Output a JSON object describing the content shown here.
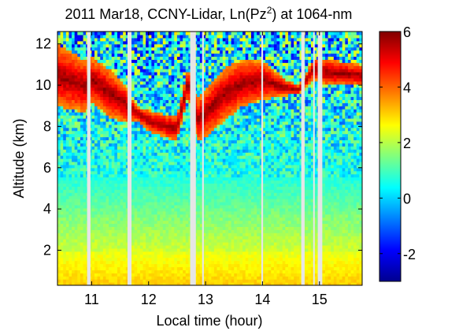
{
  "chart_data": {
    "type": "heatmap",
    "title_prefix": "2011 Mar18, CCNY-Lidar, Ln(Pz",
    "title_sup": "2",
    "title_suffix": ") at 1064-nm",
    "xlabel": "Local time (hour)",
    "ylabel": "Altitude (km)",
    "xlim": [
      10.4,
      15.75
    ],
    "ylim": [
      0.3,
      12.6
    ],
    "xticks": [
      11,
      12,
      13,
      14,
      15
    ],
    "yticks": [
      2,
      4,
      6,
      8,
      10,
      12
    ],
    "colorbar": {
      "range": [
        -3,
        6
      ],
      "ticks": [
        -2,
        0,
        2,
        4,
        6
      ],
      "colormap": "jet"
    },
    "data_gaps_hours": [
      [
        10.92,
        10.98
      ],
      [
        11.63,
        11.7
      ],
      [
        12.73,
        12.83
      ],
      [
        12.94,
        12.97
      ],
      [
        13.98,
        14.01
      ],
      [
        14.68,
        14.74
      ],
      [
        14.89,
        14.91
      ],
      [
        14.97,
        15.05
      ]
    ],
    "cloud_layer": {
      "times": [
        10.4,
        10.9,
        11.0,
        11.3,
        11.6,
        11.8,
        12.0,
        12.3,
        12.5,
        12.7,
        12.85,
        13.0,
        13.3,
        13.6,
        14.0,
        14.4,
        14.65,
        14.9,
        15.1,
        15.75
      ],
      "base_km": [
        9.0,
        8.7,
        9.2,
        8.5,
        8.2,
        8.3,
        7.8,
        7.5,
        7.3,
        9.5,
        7.3,
        7.5,
        8.2,
        8.9,
        9.3,
        9.5,
        9.6,
        10.3,
        10.0,
        10.0
      ],
      "top_km": [
        12.0,
        11.2,
        11.4,
        10.8,
        10.0,
        9.0,
        8.8,
        8.6,
        8.5,
        11.0,
        9.3,
        9.8,
        10.8,
        11.2,
        11.2,
        10.3,
        10.0,
        11.3,
        11.3,
        11.0
      ]
    },
    "boundary_layer": {
      "aerosol_top_km": 2.0,
      "residual_layer_top_km": 5.5
    },
    "background_noise_level": 0.0
  }
}
